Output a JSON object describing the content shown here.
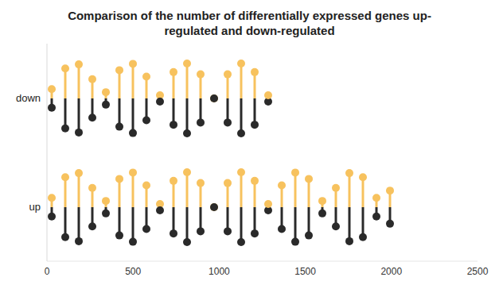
{
  "chart_data": {
    "type": "bar",
    "title": "Comparison of the number of differentially expressed genes up-regulated and down-regulated",
    "orientation": "horizontal",
    "categories": [
      "down",
      "up"
    ],
    "values": [
      1320,
      2010
    ],
    "color": "#f7c25e",
    "xlim": [
      0,
      2500
    ],
    "xticks": [
      0,
      500,
      1000,
      1500,
      2000,
      2500
    ],
    "grid": false
  }
}
